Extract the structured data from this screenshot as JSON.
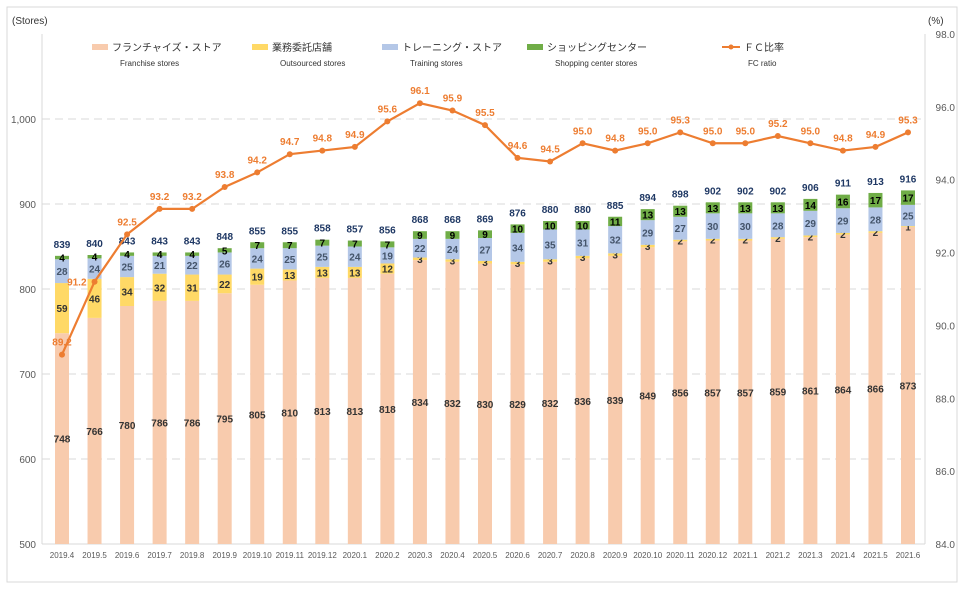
{
  "chart_data": {
    "type": "bar",
    "stacked": true,
    "left_axis_unit": "(Stores)",
    "right_axis_unit": "(%)",
    "left_ylim": [
      500,
      1100
    ],
    "left_ticks": [
      500,
      600,
      700,
      800,
      900,
      1000
    ],
    "right_ylim": [
      84.0,
      98.0
    ],
    "right_ticks": [
      "84.0",
      "86.0",
      "88.0",
      "90.0",
      "92.0",
      "94.0",
      "96.0",
      "98.0"
    ],
    "grid": true,
    "legend_position": "top",
    "categories": [
      "2019.4",
      "2019.5",
      "2019.6",
      "2019.7",
      "2019.8",
      "2019.9",
      "2019.10",
      "2019.11",
      "2019.12",
      "2020.1",
      "2020.2",
      "2020.3",
      "2020.4",
      "2020.5",
      "2020.6",
      "2020.7",
      "2020.8",
      "2020.9",
      "2020.10",
      "2020.11",
      "2020.12",
      "2021.1",
      "2021.2",
      "2021.3",
      "2021.4",
      "2021.5",
      "2021.6"
    ],
    "series": [
      {
        "name": "フランチャイズ・ストア",
        "name_en": "Franchise stores",
        "color": "#f8cbad",
        "label_color": "#333333",
        "values": [
          748,
          766,
          780,
          786,
          786,
          795,
          805,
          810,
          813,
          813,
          818,
          834,
          832,
          830,
          829,
          832,
          836,
          839,
          849,
          856,
          857,
          857,
          859,
          861,
          864,
          866,
          873
        ]
      },
      {
        "name": "業務委託店舗",
        "name_en": "Outsourced stores",
        "color": "#ffd966",
        "label_color": "#333333",
        "values": [
          59,
          46,
          34,
          32,
          31,
          22,
          19,
          13,
          13,
          13,
          12,
          3,
          3,
          3,
          3,
          3,
          3,
          3,
          3,
          2,
          2,
          2,
          2,
          2,
          2,
          2,
          1
        ]
      },
      {
        "name": "トレーニング・ストア",
        "name_en": "Training stores",
        "color": "#b4c7e7",
        "label_color": "#44546a",
        "values": [
          28,
          24,
          25,
          21,
          22,
          26,
          24,
          25,
          25,
          24,
          19,
          22,
          24,
          27,
          34,
          35,
          31,
          32,
          29,
          27,
          30,
          30,
          28,
          29,
          29,
          28,
          25
        ]
      },
      {
        "name": "ショッピングセンター",
        "name_en": "Shopping center stores",
        "color": "#70ad47",
        "label_color": "#000000",
        "values": [
          4,
          4,
          4,
          4,
          4,
          5,
          7,
          7,
          7,
          7,
          7,
          9,
          9,
          9,
          10,
          10,
          10,
          11,
          13,
          13,
          13,
          13,
          13,
          14,
          16,
          17,
          17
        ]
      }
    ],
    "totals": [
      839,
      840,
      843,
      843,
      843,
      848,
      855,
      855,
      858,
      857,
      856,
      868,
      868,
      869,
      876,
      880,
      880,
      885,
      894,
      898,
      902,
      902,
      902,
      906,
      911,
      913,
      916
    ],
    "line": {
      "name": "ＦＣ比率",
      "name_en": "FC ratio",
      "color": "#ed7d31",
      "axis": "right",
      "values": [
        "89.2",
        "91.2",
        "92.5",
        "93.2",
        "93.2",
        "93.8",
        "94.2",
        "94.7",
        "94.8",
        "94.9",
        "95.6",
        "96.1",
        "95.9",
        "95.5",
        "94.6",
        "94.5",
        "95.0",
        "94.8",
        "95.0",
        "95.3",
        "95.0",
        "95.0",
        "95.2",
        "95.0",
        "94.8",
        "94.9",
        "95.3"
      ]
    },
    "colors": {
      "total_label": "#1f3864",
      "axis_text": "#595959",
      "grid": "#d9d9d9"
    }
  }
}
